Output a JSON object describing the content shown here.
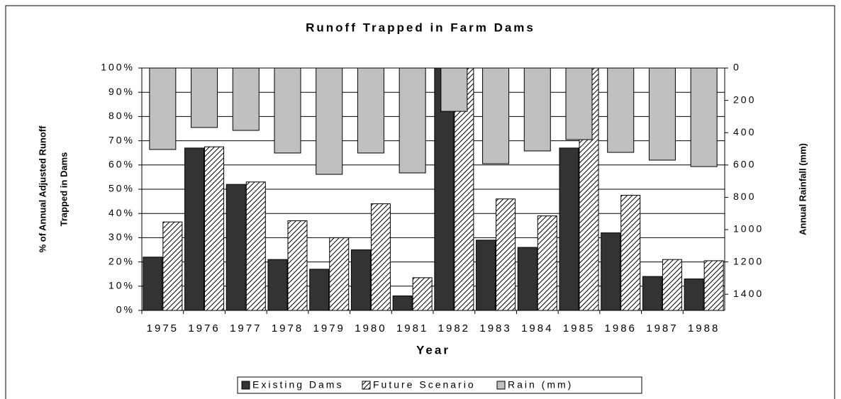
{
  "chart_data": {
    "type": "bar",
    "title": "Runoff Trapped in Farm Dams",
    "xlabel": "Year",
    "ylabel": [
      "% of Annual Adjusted Runoff",
      "Trapped in Dams"
    ],
    "y2label": "Annual Rainfall (mm)",
    "categories": [
      "1975",
      "1976",
      "1977",
      "1978",
      "1979",
      "1980",
      "1981",
      "1982",
      "1983",
      "1984",
      "1985",
      "1986",
      "1987",
      "1988"
    ],
    "series": [
      {
        "name": "Existing Dams",
        "color": "#333333",
        "values": [
          22,
          67,
          52,
          21,
          17,
          25,
          6,
          100,
          29,
          26,
          67,
          32,
          14,
          13
        ]
      },
      {
        "name": "Future Scenario",
        "color": "hatch",
        "values": [
          36.5,
          67.5,
          53,
          37,
          30,
          44,
          13.5,
          100,
          46,
          39,
          100,
          47.5,
          21,
          20.5
        ]
      },
      {
        "name": "Rain (mm)",
        "color": "#c0c0c0",
        "axis": "y2",
        "values": [
          504,
          368,
          386,
          526,
          658,
          526,
          649,
          268,
          592,
          513,
          443,
          522,
          570,
          610
        ]
      }
    ],
    "ylim": [
      0,
      100
    ],
    "yticks": [
      {
        "value": 0,
        "label": "0%"
      },
      {
        "value": 10,
        "label": "10%"
      },
      {
        "value": 20,
        "label": "20%"
      },
      {
        "value": 30,
        "label": "30%"
      },
      {
        "value": 40,
        "label": "40%"
      },
      {
        "value": 50,
        "label": "50%"
      },
      {
        "value": 60,
        "label": "60%"
      },
      {
        "value": 70,
        "label": "70%"
      },
      {
        "value": 80,
        "label": "80%"
      },
      {
        "value": 90,
        "label": "90%"
      },
      {
        "value": 100,
        "label": "100%"
      }
    ],
    "y2lim": [
      1500,
      0
    ],
    "y2ticks": [
      0,
      200,
      400,
      600,
      800,
      1000,
      1200,
      1400
    ],
    "grid": true,
    "legend": "bottom"
  }
}
